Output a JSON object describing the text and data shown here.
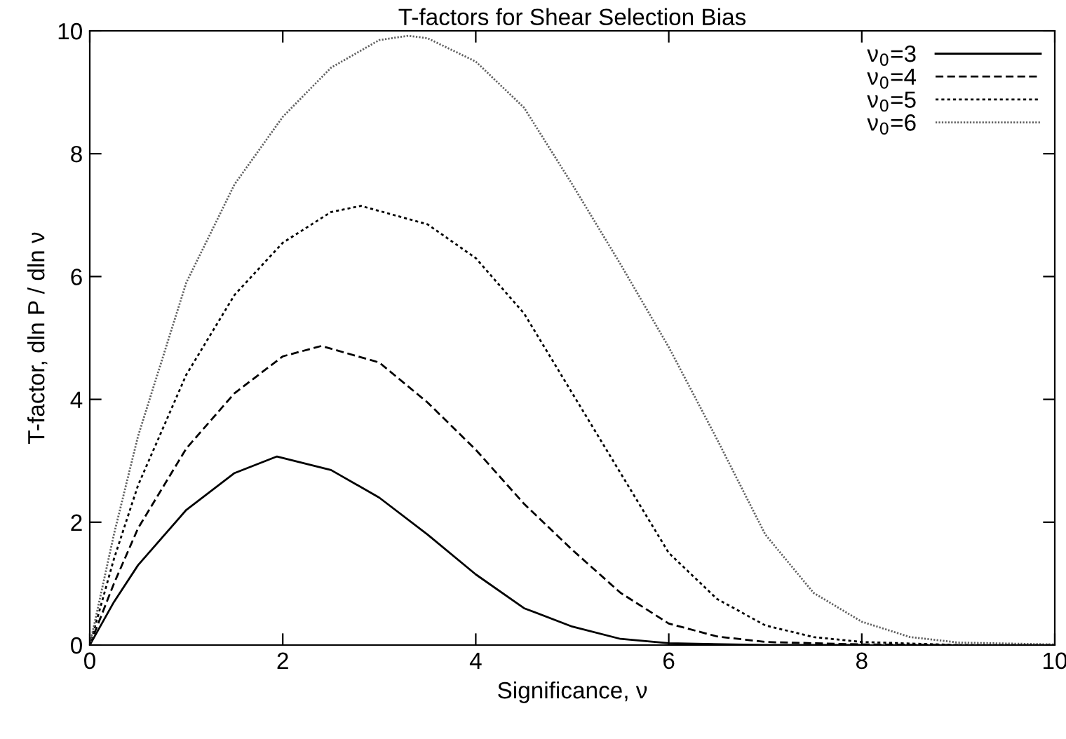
{
  "chart_data": {
    "type": "line",
    "title": "T-factors for Shear Selection Bias",
    "xlabel": "Significance, ν",
    "ylabel": "T-factor, dln P / dln ν",
    "xlim": [
      0,
      10
    ],
    "ylim": [
      0,
      10
    ],
    "xticks": [
      0,
      2,
      4,
      6,
      8,
      10
    ],
    "yticks": [
      0,
      2,
      4,
      6,
      8,
      10
    ],
    "grid": false,
    "legend": "top right",
    "marker": "none",
    "series": [
      {
        "name": "ν$_{0}$=3",
        "color": "#000000",
        "line_style": "solid",
        "x": [
          0,
          0.25,
          0.5,
          1,
          1.5,
          1.94,
          2.5,
          3,
          3.5,
          4,
          4.5,
          5,
          5.5,
          6,
          7,
          8
        ],
        "values": [
          0,
          0.7,
          1.3,
          2.2,
          2.8,
          3.07,
          2.85,
          2.4,
          1.8,
          1.15,
          0.6,
          0.3,
          0.1,
          0.03,
          0,
          0
        ]
      },
      {
        "name": "ν$_{0}$=4",
        "color": "#000000",
        "line_style": "dashed",
        "x": [
          0,
          0.25,
          0.5,
          1,
          1.5,
          2,
          2.4,
          3,
          3.5,
          4,
          4.5,
          5,
          5.5,
          6,
          6.5,
          7,
          8,
          9
        ],
        "values": [
          0,
          1.0,
          1.9,
          3.2,
          4.1,
          4.7,
          4.87,
          4.6,
          3.95,
          3.18,
          2.3,
          1.55,
          0.85,
          0.35,
          0.14,
          0.05,
          0.01,
          0
        ]
      },
      {
        "name": "ν$_{0}$=5",
        "color": "#000000",
        "line_style": "dotted",
        "x": [
          0,
          0.25,
          0.5,
          1,
          1.5,
          2,
          2.5,
          2.81,
          3.5,
          4,
          4.5,
          5,
          5.5,
          6,
          6.5,
          7,
          7.5,
          8,
          9,
          10
        ],
        "values": [
          0,
          1.4,
          2.6,
          4.4,
          5.7,
          6.55,
          7.05,
          7.15,
          6.85,
          6.3,
          5.4,
          4.1,
          2.8,
          1.5,
          0.75,
          0.32,
          0.13,
          0.05,
          0,
          0
        ]
      },
      {
        "name": "ν$_{0}$=6",
        "color": "#606060",
        "line_style": "dotted",
        "x": [
          0,
          0.25,
          0.5,
          1,
          1.5,
          2,
          2.5,
          3,
          3.3,
          3.5,
          4,
          4.5,
          5,
          5.5,
          6,
          6.5,
          7,
          7.5,
          8,
          8.5,
          9,
          10
        ],
        "values": [
          0,
          1.8,
          3.4,
          5.9,
          7.5,
          8.6,
          9.4,
          9.85,
          9.92,
          9.88,
          9.5,
          8.75,
          7.5,
          6.2,
          4.85,
          3.35,
          1.8,
          0.85,
          0.38,
          0.13,
          0.04,
          0.01
        ]
      }
    ]
  }
}
